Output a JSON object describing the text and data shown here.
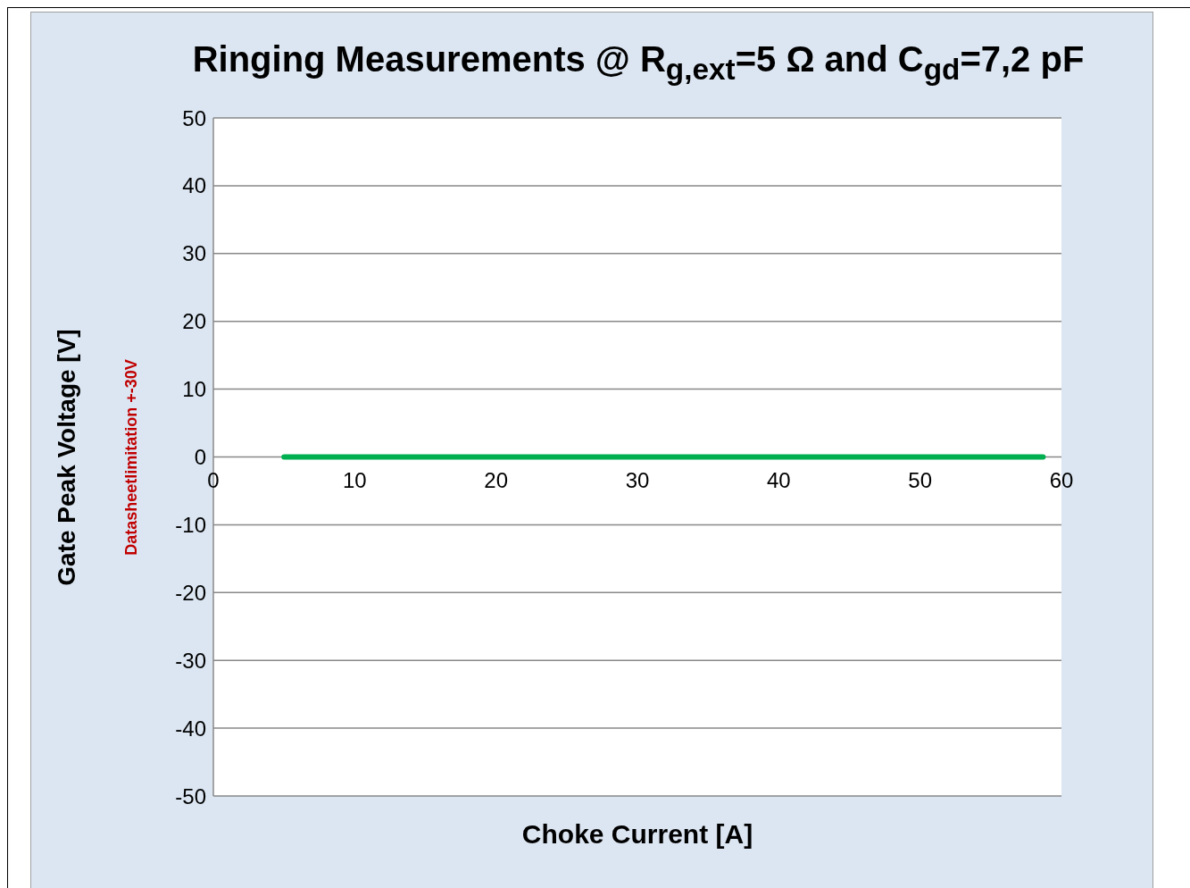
{
  "chart_data": {
    "type": "line",
    "title": "Ringing Measurements @ R$_{g,ext}$=5 Ω and C$_{gd}$=7,2 pF",
    "xlabel": "Choke Current [A]",
    "ylabel": "Gate Peak Voltage [V]",
    "annotations": [
      "Datasheetlimitation +-30V"
    ],
    "x": [
      5,
      58.7
    ],
    "series": [
      {
        "color": "#00b050",
        "values": [
          0,
          0
        ]
      }
    ],
    "xlim": [
      0,
      60
    ],
    "xticks": [
      0,
      10,
      20,
      30,
      40,
      50,
      60
    ],
    "ylim": [
      -50,
      50
    ],
    "yticks": [
      -50,
      -40,
      -30,
      -20,
      -10,
      0,
      10,
      20,
      30,
      40,
      50
    ],
    "grid": "y",
    "legend": false,
    "marker": "none",
    "line_style": "solid"
  }
}
